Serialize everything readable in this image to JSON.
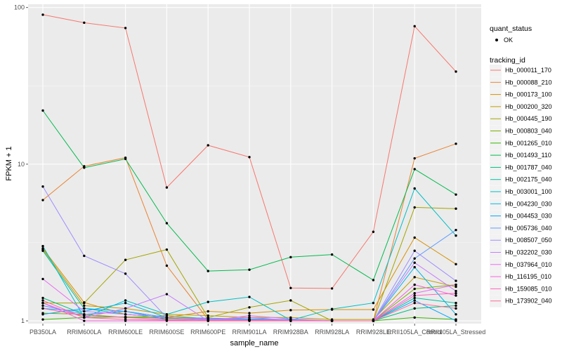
{
  "chart_data": {
    "type": "line",
    "xlabel": "sample_name",
    "ylabel": "FPKM + 1",
    "y_scale": "log10",
    "ylim": [
      0.96,
      105
    ],
    "y_ticks": [
      1,
      10,
      100
    ],
    "y_tick_labels": [
      "1",
      "10",
      "100"
    ],
    "categories": [
      "PB350LA",
      "RRIM600LA",
      "RRIM600LE",
      "RRIM600SE",
      "RRIM600PE",
      "RRIM901LA",
      "RRIM928BA",
      "RRIM928LA",
      "RRIM928LE",
      "RRII105LA_Control",
      "RRII105LA_Stressed"
    ],
    "legend_quant": {
      "title": "quant_status",
      "label": "OK"
    },
    "legend_tracking": {
      "title": "tracking_id"
    },
    "series": [
      {
        "name": "Hb_000011_170",
        "color": "#F8766D",
        "values": [
          90,
          80,
          74,
          7.1,
          13.2,
          11.1,
          1.62,
          1.61,
          3.7,
          76,
          39
        ]
      },
      {
        "name": "Hb_000088_210",
        "color": "#EA8331",
        "values": [
          5.9,
          9.7,
          11.0,
          2.25,
          1.02,
          1.01,
          1.0,
          1.0,
          1.0,
          10.9,
          13.5
        ]
      },
      {
        "name": "Hb_000173_100",
        "color": "#D89000",
        "values": [
          2.9,
          1.31,
          1.1,
          1.05,
          1.15,
          1.12,
          1.17,
          1.18,
          1.18,
          3.4,
          2.3
        ]
      },
      {
        "name": "Hb_000200_320",
        "color": "#C09B00",
        "values": [
          2.85,
          1.25,
          1.2,
          1.1,
          1.08,
          1.05,
          1.05,
          1.02,
          1.02,
          1.9,
          1.65
        ]
      },
      {
        "name": "Hb_000445_190",
        "color": "#A3A500",
        "values": [
          1.3,
          1.3,
          2.45,
          2.85,
          1.05,
          1.22,
          1.35,
          1.0,
          1.0,
          5.3,
          5.2
        ]
      },
      {
        "name": "Hb_000803_040",
        "color": "#7CAE00",
        "values": [
          1.12,
          1.1,
          1.05,
          1.08,
          1.03,
          1.02,
          1.01,
          1.0,
          1.0,
          1.6,
          1.7
        ]
      },
      {
        "name": "Hb_001265_010",
        "color": "#39B600",
        "values": [
          1.02,
          1.05,
          1.06,
          1.04,
          1.02,
          1.01,
          1.0,
          1.0,
          1.0,
          1.05,
          1.02
        ]
      },
      {
        "name": "Hb_001493_110",
        "color": "#00BB4E",
        "values": [
          22,
          9.5,
          10.8,
          4.2,
          2.08,
          2.12,
          2.55,
          2.65,
          1.82,
          9.3,
          6.4
        ]
      },
      {
        "name": "Hb_001787_040",
        "color": "#00BF7D",
        "values": [
          1.4,
          1.1,
          1.15,
          1.05,
          1.02,
          1.01,
          1.01,
          1.0,
          1.0,
          1.2,
          1.25
        ]
      },
      {
        "name": "Hb_002175_040",
        "color": "#00C1A3",
        "values": [
          2.8,
          1.2,
          1.1,
          1.05,
          1.03,
          1.02,
          1.01,
          1.0,
          1.0,
          1.4,
          1.3
        ]
      },
      {
        "name": "Hb_003001_100",
        "color": "#00BFC4",
        "values": [
          3.0,
          1.05,
          1.35,
          1.1,
          1.32,
          1.42,
          1.01,
          1.19,
          1.3,
          7.0,
          3.5
        ]
      },
      {
        "name": "Hb_004230_030",
        "color": "#00B8E7",
        "values": [
          1.2,
          1.15,
          1.3,
          1.05,
          1.04,
          1.03,
          1.02,
          1.0,
          1.0,
          2.2,
          1.1
        ]
      },
      {
        "name": "Hb_004453_030",
        "color": "#00A9FF",
        "values": [
          1.1,
          1.2,
          1.15,
          1.02,
          1.01,
          1.01,
          1.0,
          1.0,
          1.0,
          1.35,
          1.0
        ]
      },
      {
        "name": "Hb_005736_040",
        "color": "#619CFF",
        "values": [
          1.25,
          1.1,
          1.15,
          1.05,
          1.02,
          1.01,
          1.0,
          1.0,
          1.0,
          2.5,
          3.8
        ]
      },
      {
        "name": "Hb_008507_050",
        "color": "#9F8CFF",
        "values": [
          7.2,
          2.6,
          2.0,
          1.05,
          1.03,
          1.02,
          1.01,
          1.0,
          1.0,
          2.8,
          1.8
        ]
      },
      {
        "name": "Hb_032202_030",
        "color": "#C77CFF",
        "values": [
          1.3,
          1.05,
          1.2,
          1.48,
          1.0,
          1.08,
          1.03,
          1.0,
          1.0,
          2.35,
          1.55
        ]
      },
      {
        "name": "Hb_037964_010",
        "color": "#E76BF3",
        "values": [
          1.85,
          1.15,
          1.1,
          1.05,
          1.02,
          1.05,
          1.01,
          1.0,
          1.0,
          1.5,
          1.7
        ]
      },
      {
        "name": "Hb_116195_010",
        "color": "#F763E0",
        "values": [
          1.3,
          1.0,
          1.0,
          1.0,
          1.0,
          1.0,
          1.0,
          1.0,
          1.0,
          1.7,
          1.45
        ]
      },
      {
        "name": "Hb_159085_010",
        "color": "#FF62BC",
        "values": [
          1.2,
          1.08,
          1.05,
          1.02,
          1.01,
          1.01,
          1.0,
          1.0,
          1.0,
          1.45,
          1.5
        ]
      },
      {
        "name": "Hb_173902_040",
        "color": "#FF6A98",
        "values": [
          1.35,
          1.05,
          1.02,
          1.01,
          1.0,
          1.0,
          1.0,
          1.0,
          1.0,
          1.3,
          1.2
        ]
      }
    ]
  }
}
